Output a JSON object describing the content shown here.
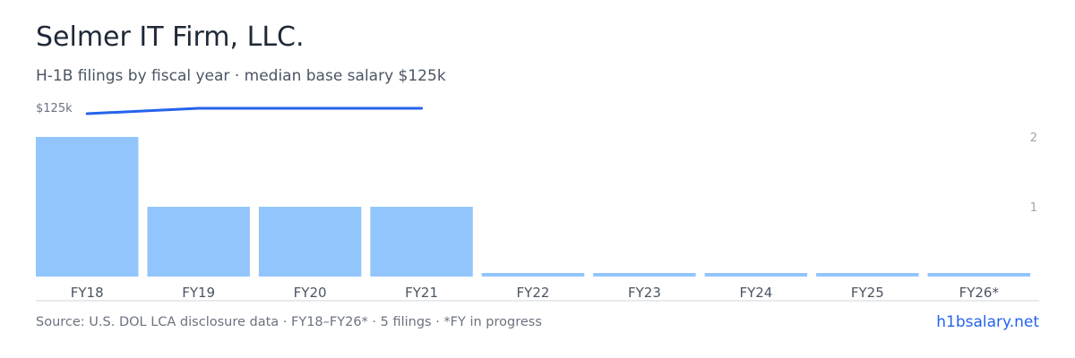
{
  "header": {
    "title": "Selmer IT Firm, LLC.",
    "subtitle": "H-1B filings by fiscal year · median base salary $125k"
  },
  "footer": {
    "source": "Source: U.S. DOL LCA disclosure data · FY18–FY26* · 5 filings · *FY in progress",
    "brand": "h1bsalary.net"
  },
  "colors": {
    "bar": "#93c5fd",
    "line": "#2563eb",
    "baseline": "#d1d5db"
  },
  "chart_data": {
    "type": "bar",
    "categories": [
      "FY18",
      "FY19",
      "FY20",
      "FY21",
      "FY22",
      "FY23",
      "FY24",
      "FY25",
      "FY26*"
    ],
    "values": [
      2,
      1,
      1,
      1,
      0,
      0,
      0,
      0,
      0
    ],
    "right_axis": {
      "ticks": [
        2,
        1
      ],
      "ylim": [
        0,
        2
      ]
    },
    "line_series": {
      "label": "$125k",
      "values": [
        125,
        125,
        125,
        125
      ]
    }
  }
}
